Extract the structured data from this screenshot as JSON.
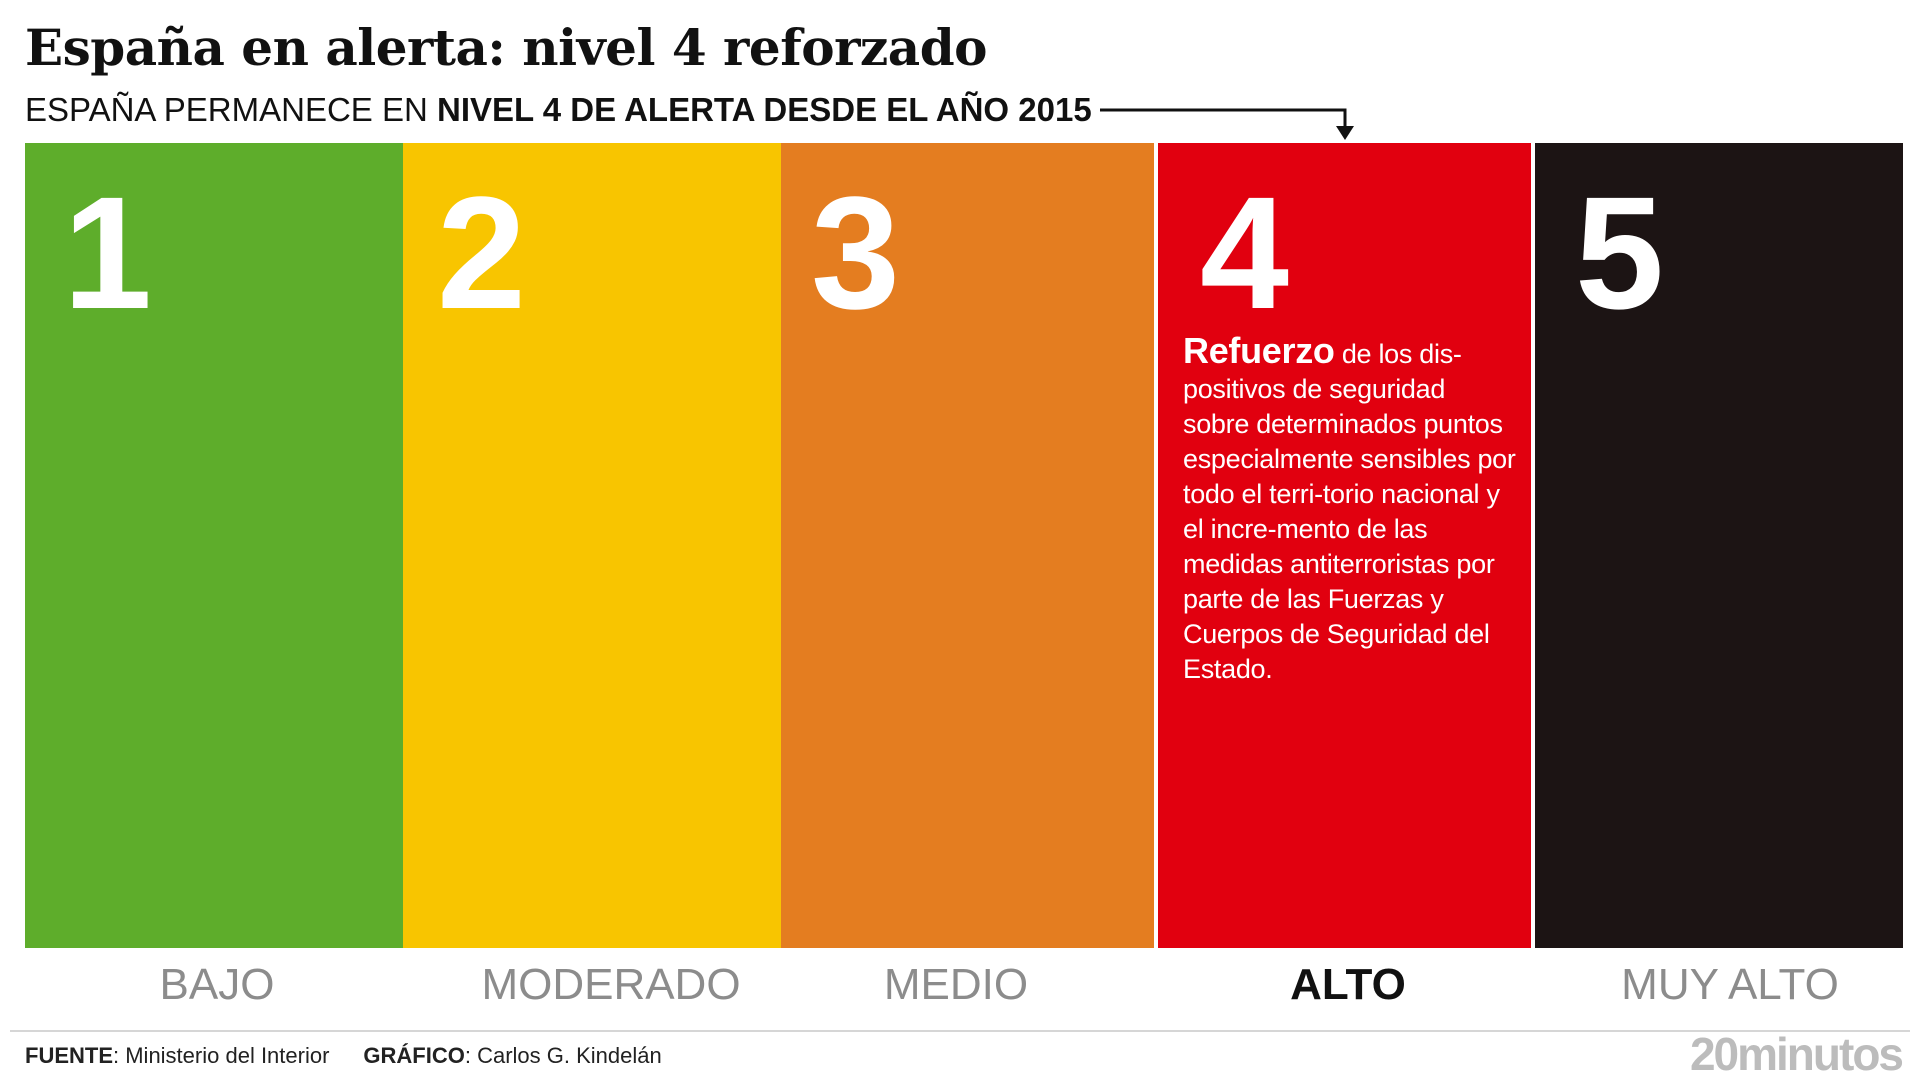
{
  "title": "España en alerta: nivel 4 reforzado",
  "subtitle": {
    "normal": "ESPAÑA PERMANECE EN ",
    "bold": "NIVEL 4 DE ALERTA DESDE EL AÑO 2015"
  },
  "levels": [
    {
      "number": "1",
      "label": "BAJO",
      "color": "#5ead2b"
    },
    {
      "number": "2",
      "label": "MODERADO",
      "color": "#f8c500"
    },
    {
      "number": "3",
      "label": "MEDIO",
      "color": "#e47d20"
    },
    {
      "number": "4",
      "label": "ALTO",
      "color": "#e1000f",
      "description_bold": "Refuerzo",
      "description": " de los dis-positivos de seguridad sobre determinados puntos especialmente sensibles por todo el terri-torio nacional y el incre-mento de las medidas antiterroristas por parte de las Fuerzas y Cuerpos de Seguridad del Estado."
    },
    {
      "number": "5",
      "label": "MUY ALTO",
      "color": "#1c1414"
    }
  ],
  "active_level": "4",
  "footer": {
    "source_label": "FUENTE",
    "source_value": ": Ministerio del Interior",
    "graphic_label": "GRÁFICO",
    "graphic_value": ": Carlos G. Kindelán"
  },
  "logo": "20minutos"
}
